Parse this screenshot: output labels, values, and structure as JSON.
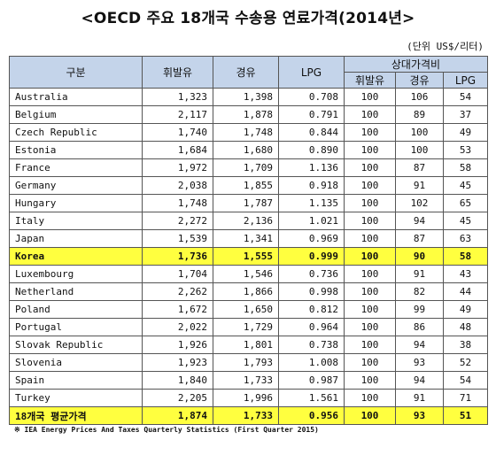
{
  "title": "<OECD 주요 18개국 수송용 연료가격(2014년>",
  "unit": "(단위 US$/리터)",
  "headers": {
    "col_country": "구분",
    "col_gasoline": "휘발유",
    "col_diesel": "경유",
    "col_lpg": "LPG",
    "col_relative": "상대가격비",
    "col_rel_gasoline": "휘발유",
    "col_rel_diesel": "경유",
    "col_rel_lpg": "LPG"
  },
  "rows": [
    {
      "country": "Australia",
      "gasoline": "1,323",
      "diesel": "1,398",
      "lpg": "0.708",
      "rel_gasoline": "100",
      "rel_diesel": "106",
      "rel_lpg": "54"
    },
    {
      "country": "Belgium",
      "gasoline": "2,117",
      "diesel": "1,878",
      "lpg": "0.791",
      "rel_gasoline": "100",
      "rel_diesel": "89",
      "rel_lpg": "37"
    },
    {
      "country": "Czech Republic",
      "gasoline": "1,740",
      "diesel": "1,748",
      "lpg": "0.844",
      "rel_gasoline": "100",
      "rel_diesel": "100",
      "rel_lpg": "49"
    },
    {
      "country": "Estonia",
      "gasoline": "1,684",
      "diesel": "1,680",
      "lpg": "0.890",
      "rel_gasoline": "100",
      "rel_diesel": "100",
      "rel_lpg": "53"
    },
    {
      "country": "France",
      "gasoline": "1,972",
      "diesel": "1,709",
      "lpg": "1.136",
      "rel_gasoline": "100",
      "rel_diesel": "87",
      "rel_lpg": "58"
    },
    {
      "country": "Germany",
      "gasoline": "2,038",
      "diesel": "1,855",
      "lpg": "0.918",
      "rel_gasoline": "100",
      "rel_diesel": "91",
      "rel_lpg": "45"
    },
    {
      "country": "Hungary",
      "gasoline": "1,748",
      "diesel": "1,787",
      "lpg": "1.135",
      "rel_gasoline": "100",
      "rel_diesel": "102",
      "rel_lpg": "65"
    },
    {
      "country": "Italy",
      "gasoline": "2,272",
      "diesel": "2,136",
      "lpg": "1.021",
      "rel_gasoline": "100",
      "rel_diesel": "94",
      "rel_lpg": "45"
    },
    {
      "country": "Japan",
      "gasoline": "1,539",
      "diesel": "1,341",
      "lpg": "0.969",
      "rel_gasoline": "100",
      "rel_diesel": "87",
      "rel_lpg": "63"
    },
    {
      "country": "Korea",
      "gasoline": "1,736",
      "diesel": "1,555",
      "lpg": "0.999",
      "rel_gasoline": "100",
      "rel_diesel": "90",
      "rel_lpg": "58",
      "highlight": true
    },
    {
      "country": "Luxembourg",
      "gasoline": "1,704",
      "diesel": "1,546",
      "lpg": "0.736",
      "rel_gasoline": "100",
      "rel_diesel": "91",
      "rel_lpg": "43"
    },
    {
      "country": "Netherland",
      "gasoline": "2,262",
      "diesel": "1,866",
      "lpg": "0.998",
      "rel_gasoline": "100",
      "rel_diesel": "82",
      "rel_lpg": "44"
    },
    {
      "country": "Poland",
      "gasoline": "1,672",
      "diesel": "1,650",
      "lpg": "0.812",
      "rel_gasoline": "100",
      "rel_diesel": "99",
      "rel_lpg": "49"
    },
    {
      "country": "Portugal",
      "gasoline": "2,022",
      "diesel": "1,729",
      "lpg": "0.964",
      "rel_gasoline": "100",
      "rel_diesel": "86",
      "rel_lpg": "48"
    },
    {
      "country": "Slovak Republic",
      "gasoline": "1,926",
      "diesel": "1,801",
      "lpg": "0.738",
      "rel_gasoline": "100",
      "rel_diesel": "94",
      "rel_lpg": "38"
    },
    {
      "country": "Slovenia",
      "gasoline": "1,923",
      "diesel": "1,793",
      "lpg": "1.008",
      "rel_gasoline": "100",
      "rel_diesel": "93",
      "rel_lpg": "52"
    },
    {
      "country": "Spain",
      "gasoline": "1,840",
      "diesel": "1,733",
      "lpg": "0.987",
      "rel_gasoline": "100",
      "rel_diesel": "94",
      "rel_lpg": "54"
    },
    {
      "country": "Turkey",
      "gasoline": "2,205",
      "diesel": "1,996",
      "lpg": "1.561",
      "rel_gasoline": "100",
      "rel_diesel": "91",
      "rel_lpg": "71"
    }
  ],
  "average": {
    "country": "18개국 평균가격",
    "gasoline": "1,874",
    "diesel": "1,733",
    "lpg": "0.956",
    "rel_gasoline": "100",
    "rel_diesel": "93",
    "rel_lpg": "51"
  },
  "footnote": "※ IEA Energy Prices And Taxes Quarterly Statistics (First Quarter 2015)",
  "colors": {
    "header_bg": "#c4d4ea",
    "highlight_bg": "#ffff3f"
  }
}
